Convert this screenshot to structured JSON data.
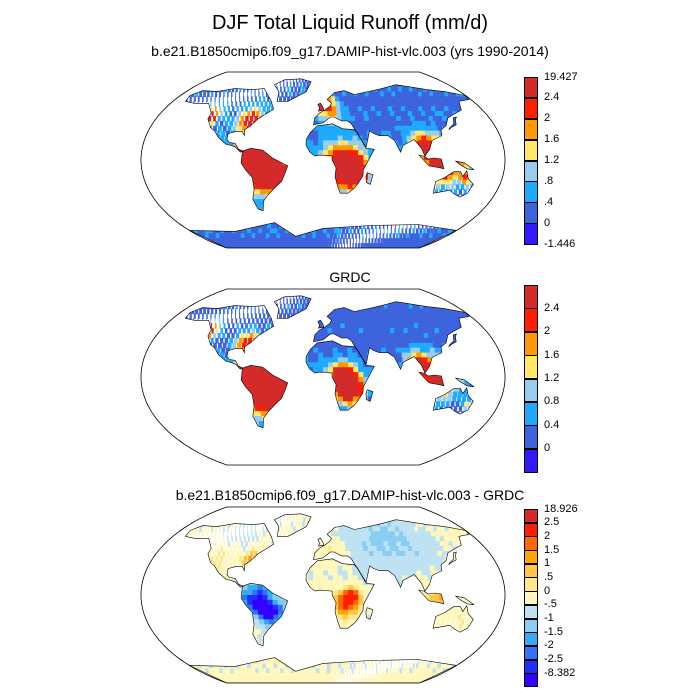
{
  "title": "DJF Total Liquid Runoff (mm/d)",
  "panels": [
    {
      "title": "b.e21.B1850cmip6.f09_g17.DAMIP-hist-vlc.003 (yrs 1990-2014)",
      "colorbar": {
        "labels": [
          "19.427",
          "2.4",
          "2",
          "1.6",
          "1.2",
          ".8",
          ".4",
          "0",
          "-1.446"
        ],
        "colors": [
          "#d42a2a",
          "#ff1f00",
          "#ff9900",
          "#ffe866",
          "#99ccee",
          "#1eaaff",
          "#3d63dd",
          "#3018ff"
        ]
      }
    },
    {
      "title": "GRDC",
      "colorbar": {
        "labels": [
          "2.4",
          "2",
          "1.6",
          "1.2",
          "0.8",
          "0.4",
          "0"
        ],
        "colors": [
          "#d42a2a",
          "#ff1f00",
          "#ff9900",
          "#ffe866",
          "#99ccee",
          "#1eaaff",
          "#3d63dd",
          "#3018ff"
        ]
      }
    },
    {
      "title": "b.e21.B1850cmip6.f09_g17.DAMIP-hist-vlc.003 - GRDC",
      "colorbar": {
        "labels": [
          "18.926",
          "2.5",
          "2",
          "1.5",
          "1",
          ".5",
          "0",
          "-.5",
          "-1",
          "-1.5",
          "-2",
          "-2.5",
          "-8.382"
        ],
        "colors": [
          "#d42a2a",
          "#ff1f00",
          "#ff6a00",
          "#ffa500",
          "#ffc64a",
          "#ffe88a",
          "#fff7bb",
          "#bfe2f3",
          "#88cdf2",
          "#35aaf5",
          "#2f74ff",
          "#2030ff",
          "#3300ff"
        ]
      }
    }
  ]
}
